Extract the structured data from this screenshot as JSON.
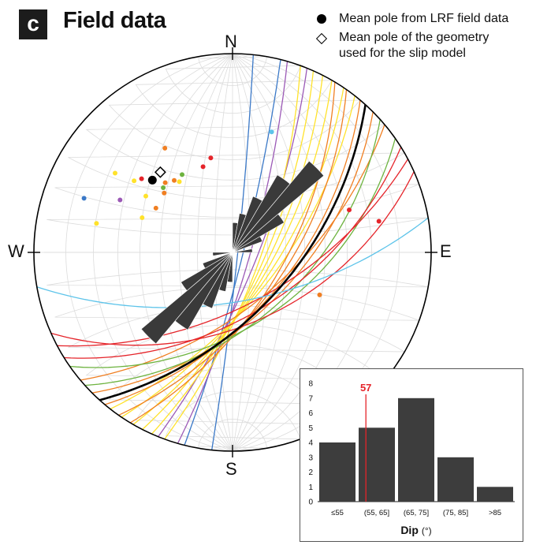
{
  "panel": {
    "letter": "c",
    "title": "Field data"
  },
  "legend": {
    "mean_pole_field": "Mean pole from LRF field data",
    "mean_pole_geometry_line1": "Mean pole of the geometry",
    "mean_pole_geometry_line2": "used for the slip model"
  },
  "compass": {
    "north": "N",
    "east": "E",
    "south": "S",
    "west": "W"
  },
  "colors": {
    "red": "#e5242a",
    "orange": "#f07f22",
    "yellow": "#ffe22b",
    "green": "#6db33f",
    "blue": "#3a78c7",
    "cyan": "#5ec4ea",
    "purple": "#9b59b6",
    "black": "#000000",
    "rose": "#3a3a3a",
    "bars": "#3d3d3d",
    "mean_line": "#e5242a"
  },
  "chart_data": [
    {
      "type": "scatter",
      "description_kind": "stereonet",
      "mean_pole_field": {
        "trend_deg": 312,
        "plunge_deg": 33
      },
      "mean_pole_geometry": {
        "trend_deg": 318,
        "plunge_deg": 33
      },
      "poles": [
        {
          "trend": 18,
          "plunge": 25,
          "color": "cyan"
        },
        {
          "trend": 327,
          "plunge": 26,
          "color": "orange"
        },
        {
          "trend": 341,
          "plunge": 41,
          "color": "red"
        },
        {
          "trend": 347,
          "plunge": 38,
          "color": "red"
        },
        {
          "trend": 327,
          "plunge": 40,
          "color": "green"
        },
        {
          "trend": 313,
          "plunge": 33,
          "color": "orange"
        },
        {
          "trend": 309,
          "plunge": 29,
          "color": "red"
        },
        {
          "trend": 316,
          "plunge": 38,
          "color": "orange"
        },
        {
          "trend": 321,
          "plunge": 40,
          "color": "orange"
        },
        {
          "trend": 323,
          "plunge": 42,
          "color": "yellow"
        },
        {
          "trend": 311,
          "plunge": 41,
          "color": "orange"
        },
        {
          "trend": 306,
          "plunge": 27,
          "color": "yellow"
        },
        {
          "trend": 304,
          "plunge": 19,
          "color": "yellow"
        },
        {
          "trend": 313,
          "plunge": 39,
          "color": "green"
        },
        {
          "trend": 303,
          "plunge": 35,
          "color": "yellow"
        },
        {
          "trend": 300,
          "plunge": 42,
          "color": "orange"
        },
        {
          "trend": 295,
          "plunge": 26,
          "color": "purple"
        },
        {
          "trend": 290,
          "plunge": 13,
          "color": "blue"
        },
        {
          "trend": 282,
          "plunge": 20,
          "color": "yellow"
        },
        {
          "trend": 291,
          "plunge": 38,
          "color": "yellow"
        },
        {
          "trend": 70,
          "plunge": 26,
          "color": "red"
        },
        {
          "trend": 78,
          "plunge": 16,
          "color": "red"
        },
        {
          "trend": 116,
          "plunge": 38,
          "color": "orange"
        }
      ],
      "planes": [
        {
          "strike": 6,
          "dip": 87,
          "color": "blue"
        },
        {
          "strike": 14,
          "dip": 84,
          "color": "blue"
        },
        {
          "strike": 16,
          "dip": 80,
          "color": "purple"
        },
        {
          "strike": 22,
          "dip": 76,
          "color": "purple"
        },
        {
          "strike": 20,
          "dip": 74,
          "color": "yellow"
        },
        {
          "strike": 24,
          "dip": 72,
          "color": "yellow"
        },
        {
          "strike": 27,
          "dip": 70,
          "color": "yellow"
        },
        {
          "strike": 30,
          "dip": 68,
          "color": "yellow"
        },
        {
          "strike": 34,
          "dip": 66,
          "color": "yellow"
        },
        {
          "strike": 38,
          "dip": 64,
          "color": "yellow"
        },
        {
          "strike": 31,
          "dip": 62,
          "color": "orange"
        },
        {
          "strike": 35,
          "dip": 60,
          "color": "orange"
        },
        {
          "strike": 40,
          "dip": 58,
          "color": "orange"
        },
        {
          "strike": 45,
          "dip": 55,
          "color": "orange"
        },
        {
          "strike": 50,
          "dip": 60,
          "color": "orange"
        },
        {
          "strike": 42,
          "dip": 57,
          "color": "green"
        },
        {
          "strike": 48,
          "dip": 52,
          "color": "green"
        },
        {
          "strike": 55,
          "dip": 50,
          "color": "green"
        },
        {
          "strike": 58,
          "dip": 55,
          "color": "red"
        },
        {
          "strike": 62,
          "dip": 60,
          "color": "red"
        },
        {
          "strike": 66,
          "dip": 50,
          "color": "red"
        },
        {
          "strike": 80,
          "dip": 62,
          "color": "cyan"
        },
        {
          "strike": 42,
          "dip": 57,
          "color": "black"
        }
      ],
      "rose": [
        {
          "azimuth_start": 20,
          "azimuth_end": 30,
          "length": 0.3
        },
        {
          "azimuth_start": 30,
          "azimuth_end": 40,
          "length": 0.45
        },
        {
          "azimuth_start": 40,
          "azimuth_end": 50,
          "length": 0.6
        },
        {
          "azimuth_start": 50,
          "azimuth_end": 60,
          "length": 0.3
        },
        {
          "azimuth_start": 60,
          "azimuth_end": 70,
          "length": 0.16
        },
        {
          "azimuth_start": 0,
          "azimuth_end": 10,
          "length": 0.15
        },
        {
          "azimuth_start": 10,
          "azimuth_end": 20,
          "length": 0.2
        },
        {
          "azimuth_start": 80,
          "azimuth_end": 90,
          "length": 0.1
        }
      ]
    },
    {
      "type": "bar",
      "categories": [
        "≤55",
        "(55, 65]",
        "(65, 75]",
        "(75, 85]",
        ">85"
      ],
      "values": [
        4,
        5,
        7,
        3,
        1
      ],
      "ylim": [
        0,
        8
      ],
      "yticks": [
        "0",
        "1",
        "2",
        "3",
        "4",
        "5",
        "6",
        "7",
        "8"
      ],
      "xlabel_bold": "Dip",
      "xlabel_unit": "(°)",
      "mean_value": 57,
      "mean_label": "57"
    }
  ]
}
